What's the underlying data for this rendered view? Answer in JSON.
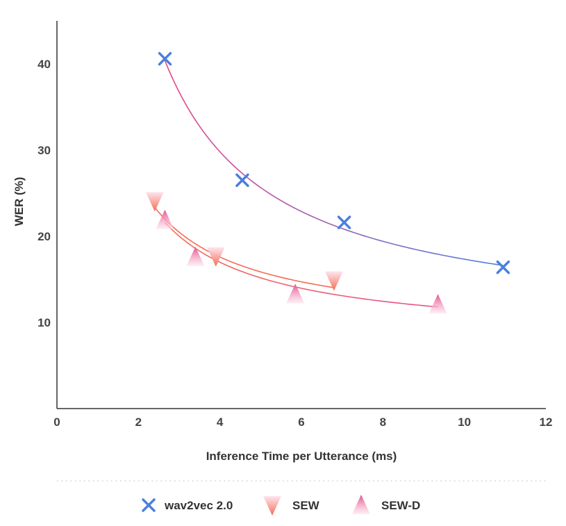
{
  "chart_data": {
    "type": "scatter",
    "xlabel": "Inference Time per Utterance (ms)",
    "ylabel": "WER (%)",
    "xlim": [
      0,
      12
    ],
    "ylim": [
      0,
      45
    ],
    "xticks": [
      0,
      2,
      4,
      6,
      8,
      10,
      12
    ],
    "yticks": [
      10,
      20,
      30,
      40
    ],
    "grid": false,
    "legend_placement": "bottom",
    "series": [
      {
        "name": "wav2vec 2.0",
        "marker": "x",
        "color": "#4a7fe0",
        "curve_colors": [
          "#e8458a",
          "#4a7fe0"
        ],
        "points": [
          [
            2.65,
            40.6
          ],
          [
            4.55,
            26.5
          ],
          [
            7.05,
            21.6
          ],
          [
            10.95,
            16.4
          ]
        ]
      },
      {
        "name": "SEW",
        "marker": "triangle-down",
        "color": "#f46b52",
        "curve_colors": [
          "#f46b52",
          "#f46b52"
        ],
        "points": [
          [
            2.4,
            23.6
          ],
          [
            3.9,
            17.2
          ],
          [
            6.8,
            14.4
          ]
        ]
      },
      {
        "name": "SEW-D",
        "marker": "triangle-up",
        "color": "#e64f8e",
        "curve_colors": [
          "#f46b52",
          "#e64f8e"
        ],
        "points": [
          [
            2.65,
            22.2
          ],
          [
            3.4,
            17.9
          ],
          [
            5.85,
            13.6
          ],
          [
            9.35,
            12.4
          ]
        ]
      }
    ]
  }
}
